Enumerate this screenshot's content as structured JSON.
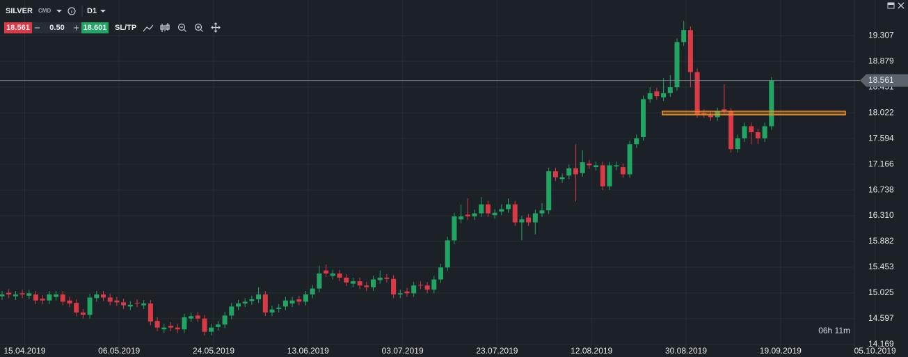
{
  "toolbar": {
    "symbol": "SILVER",
    "market": "CMD",
    "timeframe": "D1",
    "bid": "18.561",
    "lot": "0.50",
    "ask": "18.601",
    "sltp": "SL/TP"
  },
  "chart_data": {
    "type": "candlestick",
    "categories": [
      null,
      null,
      "15.04.2019",
      null,
      null,
      null,
      null,
      null,
      null,
      null,
      null,
      null,
      null,
      null,
      null,
      null,
      "06.05.2019",
      null,
      null,
      null,
      null,
      null,
      null,
      null,
      null,
      null,
      null,
      null,
      null,
      null,
      "24.05.2019",
      null,
      null,
      null,
      null,
      null,
      null,
      null,
      null,
      null,
      null,
      null,
      null,
      null,
      "13.06.2019",
      null,
      null,
      null,
      null,
      null,
      null,
      null,
      null,
      null,
      null,
      null,
      null,
      null,
      "03.07.2019",
      null,
      null,
      null,
      null,
      null,
      null,
      null,
      null,
      null,
      null,
      null,
      null,
      null,
      "23.07.2019",
      null,
      null,
      null,
      null,
      null,
      null,
      null,
      null,
      null,
      null,
      null,
      null,
      null,
      "12.08.2019",
      null,
      null,
      null,
      null,
      null,
      null,
      null,
      null,
      null,
      null,
      null,
      null,
      null,
      "30.08.2019",
      null,
      null,
      null,
      null,
      null,
      null,
      null,
      null,
      null,
      null,
      null,
      null,
      null,
      "19.09.2019",
      null,
      null,
      null,
      null,
      null,
      null,
      null,
      null,
      null,
      null,
      null,
      null,
      null,
      "05.10.2019"
    ],
    "open": [
      14.97,
      15.03,
      14.97,
      15.02,
      14.98,
      15.0,
      14.93,
      14.9,
      14.96,
      15.0,
      14.9,
      14.86,
      14.7,
      14.66,
      14.94,
      15.0,
      14.95,
      14.9,
      14.87,
      14.8,
      14.86,
      14.82,
      14.85,
      14.56,
      14.42,
      14.48,
      14.45,
      14.42,
      14.6,
      14.65,
      14.6,
      14.38,
      14.46,
      14.5,
      14.65,
      14.8,
      14.85,
      14.89,
      14.92,
      15.0,
      14.7,
      14.76,
      14.8,
      14.85,
      14.92,
      14.88,
      15.0,
      15.1,
      15.4,
      15.31,
      15.35,
      15.28,
      15.18,
      15.22,
      15.15,
      15.12,
      15.24,
      15.28,
      15.26,
      15.0,
      15.05,
      15.02,
      15.16,
      15.15,
      15.08,
      15.25,
      15.45,
      15.9,
      16.25,
      16.33,
      16.3,
      16.35,
      16.5,
      16.32,
      16.38,
      16.42,
      16.5,
      16.2,
      16.28,
      16.2,
      16.35,
      16.4,
      17.05,
      16.92,
      16.98,
      17.1,
      17.02,
      17.18,
      17.12,
      17.15,
      16.8,
      17.13,
      17.12,
      17.0,
      17.5,
      17.62,
      18.25,
      18.38,
      18.28,
      18.35,
      18.45,
      19.2,
      19.4,
      18.7,
      18.02,
      17.98,
      17.95,
      18.08,
      18.05,
      17.42,
      17.6,
      17.8,
      17.7,
      17.6,
      17.8,
      null,
      null,
      null,
      null,
      null,
      null,
      null,
      null,
      null,
      null,
      null,
      null,
      null,
      null
    ],
    "high": [
      15.06,
      15.09,
      15.06,
      15.08,
      15.08,
      15.06,
      14.99,
      15.06,
      15.06,
      15.06,
      14.96,
      14.92,
      14.76,
      15.01,
      15.06,
      15.06,
      15.01,
      14.96,
      14.93,
      14.89,
      14.92,
      14.91,
      14.91,
      14.62,
      14.51,
      14.54,
      14.51,
      14.68,
      14.7,
      14.71,
      14.66,
      14.51,
      14.56,
      14.71,
      14.86,
      14.91,
      14.94,
      14.98,
      15.12,
      15.06,
      14.81,
      14.84,
      14.96,
      14.96,
      14.98,
      15.06,
      15.16,
      15.48,
      15.5,
      15.41,
      15.41,
      15.34,
      15.28,
      15.28,
      15.21,
      15.31,
      15.4,
      15.34,
      15.32,
      15.08,
      15.11,
      15.21,
      15.22,
      15.21,
      15.31,
      15.51,
      15.96,
      16.36,
      16.5,
      16.6,
      16.41,
      16.62,
      16.56,
      16.42,
      16.5,
      16.6,
      16.56,
      16.31,
      16.34,
      16.41,
      16.52,
      17.11,
      17.11,
      17.01,
      17.16,
      17.5,
      17.4,
      17.24,
      17.21,
      17.21,
      17.21,
      17.21,
      17.18,
      17.56,
      17.66,
      18.31,
      18.45,
      18.44,
      18.6,
      18.65,
      19.26,
      19.55,
      19.46,
      18.76,
      18.08,
      18.04,
      18.11,
      18.5,
      18.11,
      17.66,
      17.86,
      17.86,
      17.76,
      17.86,
      18.62,
      null,
      null,
      null,
      null,
      null,
      null,
      null,
      null,
      null,
      null,
      null,
      null,
      null,
      null
    ],
    "low": [
      14.91,
      14.94,
      14.91,
      14.94,
      14.92,
      14.84,
      14.84,
      14.84,
      14.9,
      14.82,
      14.79,
      14.64,
      14.6,
      14.6,
      14.88,
      14.89,
      14.82,
      14.81,
      14.76,
      14.74,
      14.79,
      14.76,
      14.49,
      14.39,
      14.36,
      14.39,
      14.36,
      14.36,
      14.54,
      14.54,
      14.32,
      14.32,
      14.4,
      14.44,
      14.59,
      14.74,
      14.79,
      14.83,
      14.86,
      14.64,
      14.64,
      14.7,
      14.74,
      14.79,
      14.82,
      14.82,
      14.94,
      15.04,
      15.29,
      15.25,
      15.22,
      15.14,
      15.12,
      15.09,
      15.06,
      15.06,
      15.18,
      15.2,
      14.94,
      14.94,
      14.96,
      14.96,
      15.09,
      15.02,
      15.02,
      15.19,
      15.39,
      15.84,
      16.19,
      16.24,
      16.24,
      16.29,
      16.29,
      16.26,
      16.32,
      16.36,
      16.14,
      15.9,
      16.14,
      16.0,
      16.29,
      16.34,
      16.89,
      16.86,
      16.92,
      16.55,
      16.96,
      17.09,
      17.06,
      16.74,
      16.74,
      17.07,
      16.94,
      16.94,
      17.44,
      17.56,
      18.19,
      18.24,
      18.22,
      18.29,
      18.39,
      19.14,
      18.45,
      17.94,
      17.94,
      17.89,
      17.89,
      17.99,
      17.36,
      17.36,
      17.54,
      17.5,
      17.5,
      17.54,
      17.74,
      null,
      null,
      null,
      null,
      null,
      null,
      null,
      null,
      null,
      null,
      null,
      null,
      null,
      null
    ],
    "close": [
      15.0,
      15.0,
      15.0,
      15.0,
      15.02,
      14.9,
      14.9,
      15.0,
      15.0,
      14.88,
      14.85,
      14.7,
      14.66,
      14.95,
      15.0,
      14.95,
      14.88,
      14.87,
      14.82,
      14.83,
      14.85,
      14.85,
      14.55,
      14.45,
      14.45,
      14.45,
      14.42,
      14.62,
      14.64,
      14.6,
      14.38,
      14.45,
      14.5,
      14.65,
      14.8,
      14.85,
      14.88,
      14.92,
      15.0,
      14.7,
      14.75,
      14.78,
      14.9,
      14.9,
      14.88,
      15.0,
      15.1,
      15.35,
      15.35,
      15.35,
      15.28,
      15.2,
      15.22,
      15.15,
      15.12,
      15.25,
      15.28,
      15.26,
      15.0,
      15.02,
      15.02,
      15.15,
      15.15,
      15.08,
      15.25,
      15.45,
      15.9,
      16.3,
      16.3,
      16.3,
      16.35,
      16.5,
      16.35,
      16.36,
      16.42,
      16.5,
      16.2,
      16.25,
      16.2,
      16.35,
      16.4,
      17.05,
      16.95,
      16.95,
      17.1,
      17.0,
      17.2,
      17.15,
      17.15,
      16.8,
      17.15,
      17.15,
      17.0,
      17.5,
      17.6,
      18.25,
      18.35,
      18.3,
      18.35,
      18.45,
      19.2,
      19.4,
      18.7,
      18.0,
      18.0,
      17.95,
      18.05,
      18.05,
      17.42,
      17.6,
      17.8,
      17.7,
      17.6,
      17.8,
      18.56,
      null,
      null,
      null,
      null,
      null,
      null,
      null,
      null,
      null,
      null,
      null,
      null,
      null,
      null
    ],
    "up_color": "#22a563",
    "down_color": "#d93a45",
    "ylim": [
      13.96,
      19.9
    ],
    "yticks": [
      14.169,
      14.597,
      15.025,
      15.453,
      15.882,
      {
        "value": 16.31,
        "label": "16.310"
      },
      16.738,
      17.166,
      17.594,
      18.022,
      18.451,
      18.879,
      19.307
    ],
    "grid": true,
    "current_price": 18.561,
    "zone": [
      17.99,
      18.05
    ],
    "zone_color": "#f0922b",
    "countdown": "06h 11m"
  }
}
